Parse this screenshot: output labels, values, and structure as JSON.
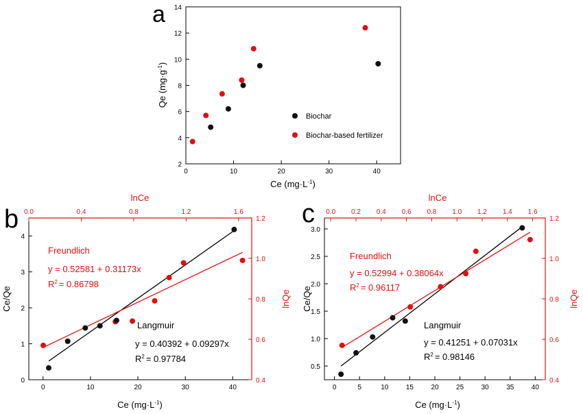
{
  "chart_data": [
    {
      "panel": "a",
      "type": "scatter",
      "xlabel": "Ce (mg·L",
      "xlabel_sup": "-1",
      "xlabel_tail": ")",
      "ylabel": "Qe (mg·g",
      "ylabel_sup": "-1",
      "ylabel_tail": ")",
      "xlim": [
        0,
        45
      ],
      "ylim": [
        2,
        14
      ],
      "xticks": [
        0,
        10,
        20,
        30,
        40
      ],
      "yticks": [
        2,
        4,
        6,
        8,
        10,
        12,
        14
      ],
      "legend_position": "right",
      "colors": {
        "Biochar": "#111111",
        "Biochar-based fertilizer": "#e01010"
      },
      "series": [
        {
          "name": "Biochar",
          "x": [
            5.2,
            8.9,
            12.0,
            15.5,
            40.3
          ],
          "y": [
            4.8,
            6.2,
            8.0,
            9.5,
            9.65
          ]
        },
        {
          "name": "Biochar-based fertilizer",
          "x": [
            1.4,
            4.2,
            7.6,
            11.7,
            14.2,
            37.6
          ],
          "y": [
            3.7,
            5.7,
            7.35,
            8.4,
            10.8,
            12.4
          ]
        }
      ]
    },
    {
      "panel": "b",
      "type": "scatter",
      "xlabel": "Ce (mg·L",
      "xlabel_sup": "-1",
      "xlabel_tail": ")",
      "x2label": "lnCe",
      "ylabel": "Ce/Qe",
      "y2label": "lnQe",
      "xlim": [
        -3,
        44
      ],
      "ylim": [
        0,
        4.5
      ],
      "x2lim": [
        0,
        1.7
      ],
      "y2lim": [
        0.4,
        1.2
      ],
      "xticks": [
        0,
        10,
        20,
        30,
        40
      ],
      "yticks": [
        0,
        1,
        2,
        3,
        4
      ],
      "x2ticks": [
        "0.0",
        "0.4",
        "0.8",
        "1.2",
        "1.6"
      ],
      "y2ticks": [
        "0.4",
        "0.6",
        "0.8",
        "1.0",
        "1.2"
      ],
      "langmuir": {
        "label": "Langmuir",
        "equation": "y = 0.40392 + 0.09297x",
        "r2": "= 0.97784",
        "x": [
          1.2,
          5.2,
          8.9,
          12.0,
          15.5,
          40.3
        ],
        "y": [
          0.33,
          1.07,
          1.44,
          1.5,
          1.65,
          4.18
        ],
        "fit_x": [
          1.2,
          40.3
        ],
        "fit_y": [
          0.52,
          4.15
        ]
      },
      "freundlich": {
        "label": "Freundlich",
        "equation": "y = 0.52581 + 0.31173x",
        "r2": "= 0.86798",
        "x": [
          0.11,
          0.66,
          0.79,
          0.96,
          1.07,
          1.18,
          1.63
        ],
        "y": [
          0.57,
          0.687,
          0.69,
          0.79,
          0.905,
          0.978,
          0.99
        ],
        "fit_x": [
          0.11,
          1.63
        ],
        "fit_y": [
          0.56,
          1.03
        ]
      }
    },
    {
      "panel": "c",
      "type": "scatter",
      "xlabel": "Ce (mg·L",
      "xlabel_sup": "-1",
      "xlabel_tail": ")",
      "x2label": "lnCe",
      "ylabel": "Ce/Qe",
      "y2label": "lnQe",
      "xlim": [
        -2,
        42
      ],
      "ylim": [
        0.25,
        3.2
      ],
      "x2lim": [
        -0.05,
        1.7
      ],
      "y2lim": [
        0.4,
        1.2
      ],
      "xticks": [
        0,
        5,
        10,
        15,
        20,
        25,
        30,
        35,
        40
      ],
      "yticks": [
        "0.5",
        "1.0",
        "1.5",
        "2.0",
        "2.5",
        "3.0"
      ],
      "x2ticks": [
        "0.0",
        "0.2",
        "0.4",
        "0.6",
        "0.8",
        "1.0",
        "1.2",
        "1.4",
        "1.6"
      ],
      "y2ticks": [
        "0.4",
        "0.6",
        "0.8",
        "1.0",
        "1.2"
      ],
      "langmuir": {
        "label": "Langmuir",
        "equation": "y = 0.41251 + 0.07031x",
        "r2": "= 0.98146",
        "x": [
          1.3,
          4.3,
          7.6,
          11.6,
          14.1,
          37.4
        ],
        "y": [
          0.35,
          0.74,
          1.03,
          1.38,
          1.32,
          3.02
        ],
        "fit_x": [
          1.3,
          37.4
        ],
        "fit_y": [
          0.5,
          3.04
        ]
      },
      "freundlich": {
        "label": "Freundlich",
        "equation": "y = 0.52994 + 0.38064x",
        "r2": "= 0.96117",
        "x": [
          0.09,
          0.63,
          0.87,
          1.07,
          1.15,
          1.58
        ],
        "y": [
          0.57,
          0.76,
          0.86,
          0.925,
          1.035,
          1.093
        ],
        "fit_x": [
          0.09,
          1.58
        ],
        "fit_y": [
          0.56,
          1.13
        ]
      }
    }
  ],
  "panel_letters": {
    "a": "a",
    "b": "b",
    "c": "c"
  },
  "legend": {
    "biochar": "Biochar",
    "fertilizer": "Biochar-based fertilizer"
  },
  "r2_label": "R",
  "r2_sup": "2"
}
